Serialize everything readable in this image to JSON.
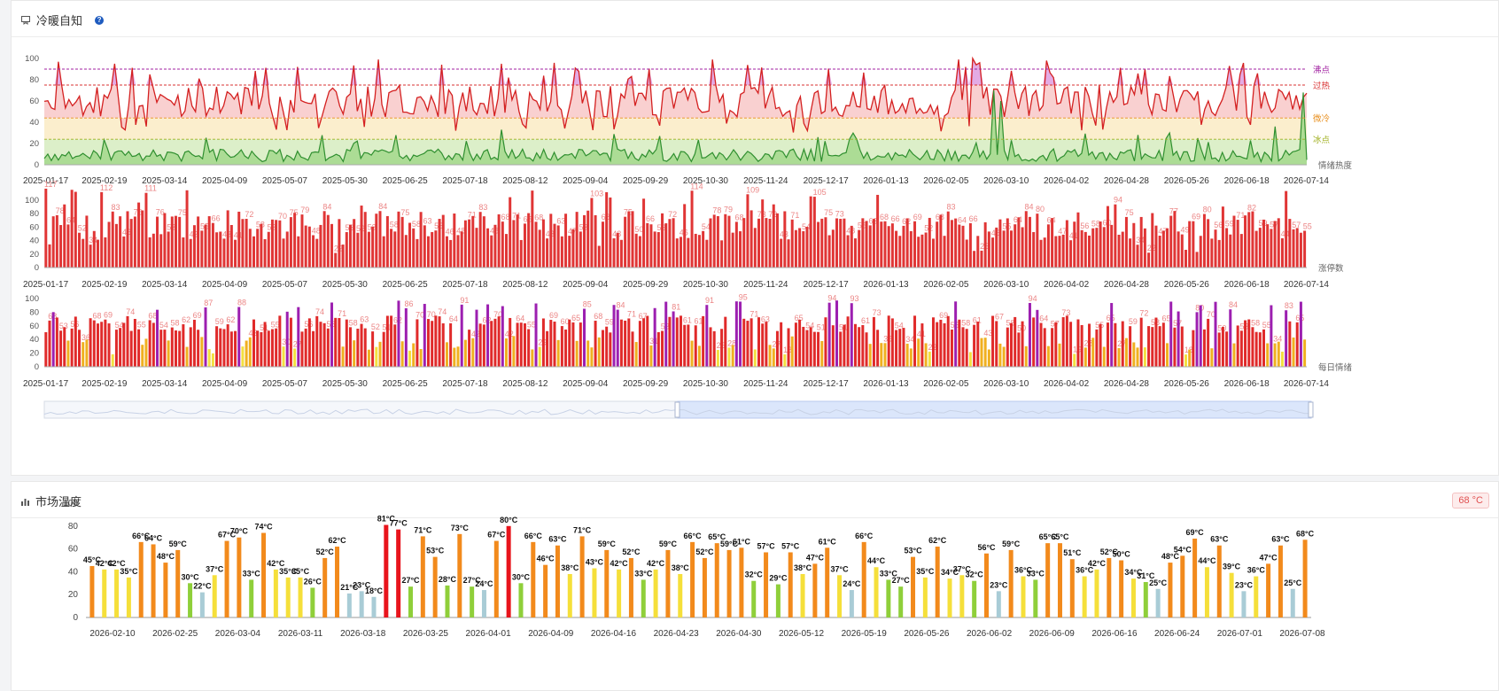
{
  "panel1": {
    "title": "冷暖自知",
    "help_icon": "?"
  },
  "panel2": {
    "title": "市场温度",
    "badge": "68 °C"
  },
  "x_axis_dates": [
    "2025-01-17",
    "2025-02-19",
    "2025-03-14",
    "2025-04-09",
    "2025-05-07",
    "2025-05-30",
    "2025-06-25",
    "2025-07-18",
    "2025-08-12",
    "2025-09-04",
    "2025-09-29",
    "2025-10-30",
    "2025-11-24",
    "2025-12-17",
    "2026-01-13",
    "2026-02-05",
    "2026-03-10",
    "2026-04-02",
    "2026-04-28",
    "2026-05-26",
    "2026-06-18",
    "2026-07-14"
  ],
  "chart_data": [
    {
      "type": "line",
      "name": "情绪热度",
      "y_ticks": [
        "0",
        "20",
        "40",
        "60",
        "80",
        "100"
      ],
      "ylim": [
        0,
        100
      ],
      "thresholds": [
        {
          "label": "沸点",
          "value": 90,
          "color": "#a020a0"
        },
        {
          "label": "过热",
          "value": 75,
          "color": "#d83030"
        },
        {
          "label": "微冷",
          "value": 44,
          "color": "#e89020"
        },
        {
          "label": "冰点",
          "value": 24,
          "color": "#a0b020"
        }
      ],
      "series_label": "情绪热度",
      "n_points": 360,
      "colors": {
        "hot": "#a020a0",
        "warm": "#d42020",
        "cool": "#f0a020",
        "cold": "#2f8f2f",
        "band_red": "#f8c8c8",
        "band_yellow": "#fbeecd",
        "band_green": "#dcefc9"
      }
    },
    {
      "type": "bar",
      "name": "涨停数",
      "series_label": "涨停数",
      "y_ticks": [
        "0",
        "20",
        "40",
        "60",
        "80",
        "100"
      ],
      "ylim": [
        0,
        120
      ],
      "color": "#e03535",
      "label_color": "#e87070"
    },
    {
      "type": "bar",
      "name": "每日情绪",
      "series_label": "每日情绪",
      "y_ticks": [
        "0",
        "20",
        "40",
        "60",
        "80",
        "100"
      ],
      "ylim": [
        0,
        100
      ],
      "colors": {
        "hot": "#9c1fb0",
        "warm": "#e02a2a",
        "cool": "#f0b020",
        "cold": "#f3e040"
      }
    },
    {
      "type": "bar",
      "name": "市场温度",
      "y_ticks": [
        "0",
        "20",
        "40",
        "60",
        "80",
        "100"
      ],
      "ylim": [
        0,
        100
      ],
      "x_ticks": [
        "2026-02-10",
        "2026-02-25",
        "2026-03-04",
        "2026-03-11",
        "2026-03-18",
        "2026-03-25",
        "2026-04-01",
        "2026-04-09",
        "2026-04-16",
        "2026-04-23",
        "2026-04-30",
        "2026-05-12",
        "2026-05-19",
        "2026-05-26",
        "2026-06-02",
        "2026-06-09",
        "2026-06-16",
        "2026-06-24",
        "2026-07-01",
        "2026-07-08"
      ],
      "values": [
        45,
        42,
        42,
        35,
        66,
        64,
        48,
        59,
        30,
        22,
        37,
        67,
        70,
        33,
        74,
        42,
        35,
        35,
        26,
        52,
        62,
        21,
        23,
        18,
        81,
        77,
        27,
        71,
        53,
        28,
        73,
        27,
        24,
        67,
        80,
        30,
        66,
        46,
        63,
        38,
        71,
        43,
        59,
        42,
        52,
        33,
        42,
        59,
        38,
        66,
        52,
        65,
        59,
        61,
        32,
        57,
        29,
        57,
        38,
        47,
        61,
        37,
        24,
        66,
        44,
        33,
        27,
        53,
        35,
        62,
        34,
        37,
        32,
        56,
        23,
        59,
        36,
        33,
        65,
        65,
        51,
        36,
        42,
        52,
        50,
        34,
        31,
        25,
        48,
        54,
        69,
        44,
        63,
        39,
        23,
        36,
        47,
        63,
        25,
        68
      ],
      "unit": "°C",
      "colors": {
        "hot": "#e8141c",
        "warm": "#f28a1c",
        "mild": "#f5df3a",
        "cool": "#8fcf3a",
        "cold": "#a9ccd6"
      }
    }
  ]
}
